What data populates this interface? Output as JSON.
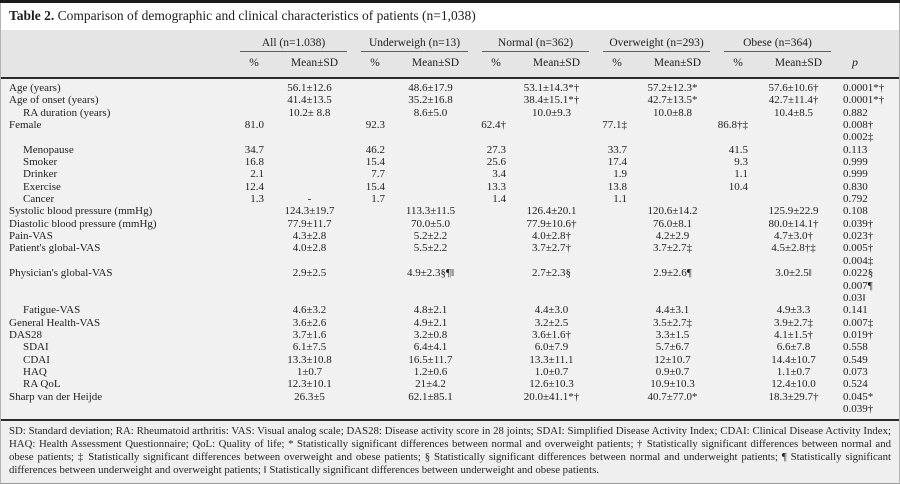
{
  "title": {
    "label": "Table 2.",
    "text": "Comparison of demographic and clinical characteristics of patients (n=1,038)"
  },
  "header": {
    "groups": [
      {
        "label": "All (n=1.038)"
      },
      {
        "label": "Underweigh (n=13)"
      },
      {
        "label": "Normal (n=362)"
      },
      {
        "label": "Overweight (n=293)"
      },
      {
        "label": "Obese (n=364)"
      }
    ],
    "pct_label": "%",
    "mean_sd_label": "Mean±SD",
    "p_label": "p"
  },
  "rows": [
    {
      "label": "Age (years)",
      "indent": false,
      "cells": [
        "",
        "56.1±12.6",
        "",
        "48.6±17.9",
        "",
        "53.1±14.3*†",
        "",
        "57.2±12.3*",
        "",
        "57.6±10.6†"
      ],
      "p": "0.0001*†"
    },
    {
      "label": "Age of onset (years)",
      "indent": false,
      "cells": [
        "",
        "41.4±13.5",
        "",
        "35.2±16.8",
        "",
        "38.4±15.1*†",
        "",
        "42.7±13.5*",
        "",
        "42.7±11.4†"
      ],
      "p": "0.0001*†"
    },
    {
      "label": "RA duration (years)",
      "indent": true,
      "cells": [
        "",
        "10.2± 8.8",
        "",
        "8.6±5.0",
        "",
        "10.0±9.3",
        "",
        "10.0±8.8",
        "",
        "10.4±8.5"
      ],
      "p": "0.882"
    },
    {
      "label": "Female",
      "indent": false,
      "cells": [
        "81.0",
        "",
        "92.3",
        "",
        "62.4†",
        "",
        "77.1‡",
        "",
        "86.8†‡",
        ""
      ],
      "p": "0.008†"
    },
    {
      "label": "",
      "indent": false,
      "cells": [
        "",
        "",
        "",
        "",
        "",
        "",
        "",
        "",
        "",
        ""
      ],
      "p": "0.002‡"
    },
    {
      "label": "Menopause",
      "indent": true,
      "cells": [
        "34.7",
        "",
        "46.2",
        "",
        "27.3",
        "",
        "33.7",
        "",
        "41.5",
        ""
      ],
      "p": "0.113"
    },
    {
      "label": "Smoker",
      "indent": true,
      "cells": [
        "16.8",
        "",
        "15.4",
        "",
        "25.6",
        "",
        "17.4",
        "",
        "9.3",
        ""
      ],
      "p": "0.999"
    },
    {
      "label": "Drinker",
      "indent": true,
      "cells": [
        "2.1",
        "",
        "7.7",
        "",
        "3.4",
        "",
        "1.9",
        "",
        "1.1",
        ""
      ],
      "p": "0.999"
    },
    {
      "label": "Exercise",
      "indent": true,
      "cells": [
        "12.4",
        "",
        "15.4",
        "",
        "13.3",
        "",
        "13.8",
        "",
        "10.4",
        ""
      ],
      "p": "0.830"
    },
    {
      "label": "Cancer",
      "indent": true,
      "cells": [
        "1.3",
        "-",
        "1.7",
        "",
        "1.4",
        "",
        "1.1",
        "",
        "",
        ""
      ],
      "p": "0.792"
    },
    {
      "label": "Systolic blood pressure (mmHg)",
      "indent": false,
      "cells": [
        "",
        "124.3±19.7",
        "",
        "113.3±11.5",
        "",
        "126.4±20.1",
        "",
        "120.6±14.2",
        "",
        "125.9±22.9"
      ],
      "p": "0.108"
    },
    {
      "label": "Diastolic blood pressure (mmHg)",
      "indent": false,
      "cells": [
        "",
        "77.9±11.7",
        "",
        "70.0±5.0",
        "",
        "77.9±10.6†",
        "",
        "76.0±8.1",
        "",
        "80.0±14.1†"
      ],
      "p": "0.039†"
    },
    {
      "label": "Pain-VAS",
      "indent": false,
      "cells": [
        "",
        "4.3±2.8",
        "",
        "5.2±2.2",
        "",
        "4.0±2.8†",
        "",
        "4.2±2.9",
        "",
        "4.7±3.0†"
      ],
      "p": "0.023†"
    },
    {
      "label": "Patient's global-VAS",
      "indent": false,
      "cells": [
        "",
        "4.0±2.8",
        "",
        "5.5±2.2",
        "",
        "3.7±2.7†",
        "",
        "3.7±2.7‡",
        "",
        "4.5±2.8†‡"
      ],
      "p": "0.005†"
    },
    {
      "label": "",
      "indent": false,
      "cells": [
        "",
        "",
        "",
        "",
        "",
        "",
        "",
        "",
        "",
        ""
      ],
      "p": "0.004‡"
    },
    {
      "label": "Physician's global-VAS",
      "indent": false,
      "cells": [
        "",
        "2.9±2.5",
        "",
        "4.9±2.3§¶‖",
        "",
        "2.7±2.3§",
        "",
        "2.9±2.6¶",
        "",
        "3.0±2.5‖"
      ],
      "p": "0.022§"
    },
    {
      "label": "",
      "indent": false,
      "cells": [
        "",
        "",
        "",
        "",
        "",
        "",
        "",
        "",
        "",
        ""
      ],
      "p": "0.007¶"
    },
    {
      "label": "",
      "indent": false,
      "cells": [
        "",
        "",
        "",
        "",
        "",
        "",
        "",
        "",
        "",
        ""
      ],
      "p": "0.03‖"
    },
    {
      "label": "Fatigue-VAS",
      "indent": true,
      "cells": [
        "",
        "4.6±3.2",
        "",
        "4.8±2.1",
        "",
        "4.4±3.0",
        "",
        "4.4±3.1",
        "",
        "4.9±3.3"
      ],
      "p": "0.141"
    },
    {
      "label": "General Health-VAS",
      "indent": false,
      "cells": [
        "",
        "3.6±2.6",
        "",
        "4.9±2.1",
        "",
        "3.2±2.5",
        "",
        "3.5±2.7‡",
        "",
        "3.9±2.7‡"
      ],
      "p": "0.007‡"
    },
    {
      "label": "DAS28",
      "indent": false,
      "cells": [
        "",
        "3.7±1.6",
        "",
        "3.2±0.8",
        "",
        "3.6±1.6†",
        "",
        "3.3±1.5",
        "",
        "4.1±1.5†"
      ],
      "p": "0.019†"
    },
    {
      "label": "SDAI",
      "indent": true,
      "cells": [
        "",
        "6.1±7.5",
        "",
        "6.4±4.1",
        "",
        "6.0±7.9",
        "",
        "5.7±6.7",
        "",
        "6.6±7.8"
      ],
      "p": "0.558"
    },
    {
      "label": "CDAI",
      "indent": true,
      "cells": [
        "",
        "13.3±10.8",
        "",
        "16.5±11.7",
        "",
        "13.3±11.1",
        "",
        "12±10.7",
        "",
        "14.4±10.7"
      ],
      "p": "0.549"
    },
    {
      "label": "HAQ",
      "indent": true,
      "cells": [
        "",
        "1±0.7",
        "",
        "1.2±0.6",
        "",
        "1.0±0.7",
        "",
        "0.9±0.7",
        "",
        "1.1±0.7"
      ],
      "p": "0.073"
    },
    {
      "label": "RA QoL",
      "indent": true,
      "cells": [
        "",
        "12.3±10.1",
        "",
        "21±4.2",
        "",
        "12.6±10.3",
        "",
        "10.9±10.3",
        "",
        "12.4±10.0"
      ],
      "p": "0.524"
    },
    {
      "label": "Sharp van der Heijde",
      "indent": false,
      "cells": [
        "",
        "26.3±5",
        "",
        "62.1±85.1",
        "",
        "20.0±41.1*†",
        "",
        "40.7±77.0*",
        "",
        "18.3±29.7†"
      ],
      "p": "0.045*"
    },
    {
      "label": "",
      "indent": false,
      "cells": [
        "",
        "",
        "",
        "",
        "",
        "",
        "",
        "",
        "",
        ""
      ],
      "p": "0.039†"
    }
  ],
  "footnote": "SD: Standard deviation; RA: Rheumatoid arthritis: VAS: Visual analog scale; DAS28: Disease activity score in 28 joints; SDAI: Simplified Disease Activity Index; CDAI: Clinical Disease Activity Index; HAQ: Health Assessment Questionnaire; QoL: Quality of life; * Statistically significant differences between normal and overweight patients; † Statistically significant differences between normal and obese patients; ‡ Statistically significant differences between overweight and obese patients; § Statistically significant differences between normal and underweight patients; ¶ Statistically significant differences between underweight and overweight patients; ‖ Statistically significant differences between underweight and obese patients."
}
